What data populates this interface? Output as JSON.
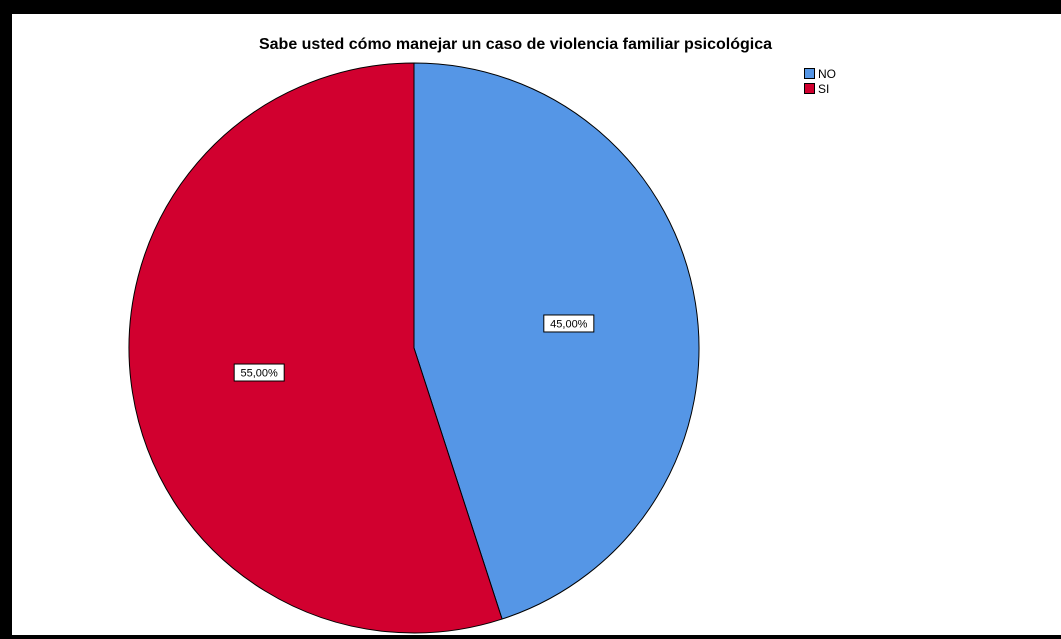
{
  "chart_data": {
    "type": "pie",
    "title": "Sabe usted cómo manejar un caso de violencia familiar psicológica",
    "slices": [
      {
        "label": "NO",
        "value": 45.0,
        "display": "45,00%",
        "color": "#5596e6"
      },
      {
        "label": "SI",
        "value": 55.0,
        "display": "55,00%",
        "color": "#d1002f"
      }
    ],
    "legend": {
      "position": "top-right",
      "entries": [
        "NO",
        "SI"
      ]
    }
  }
}
